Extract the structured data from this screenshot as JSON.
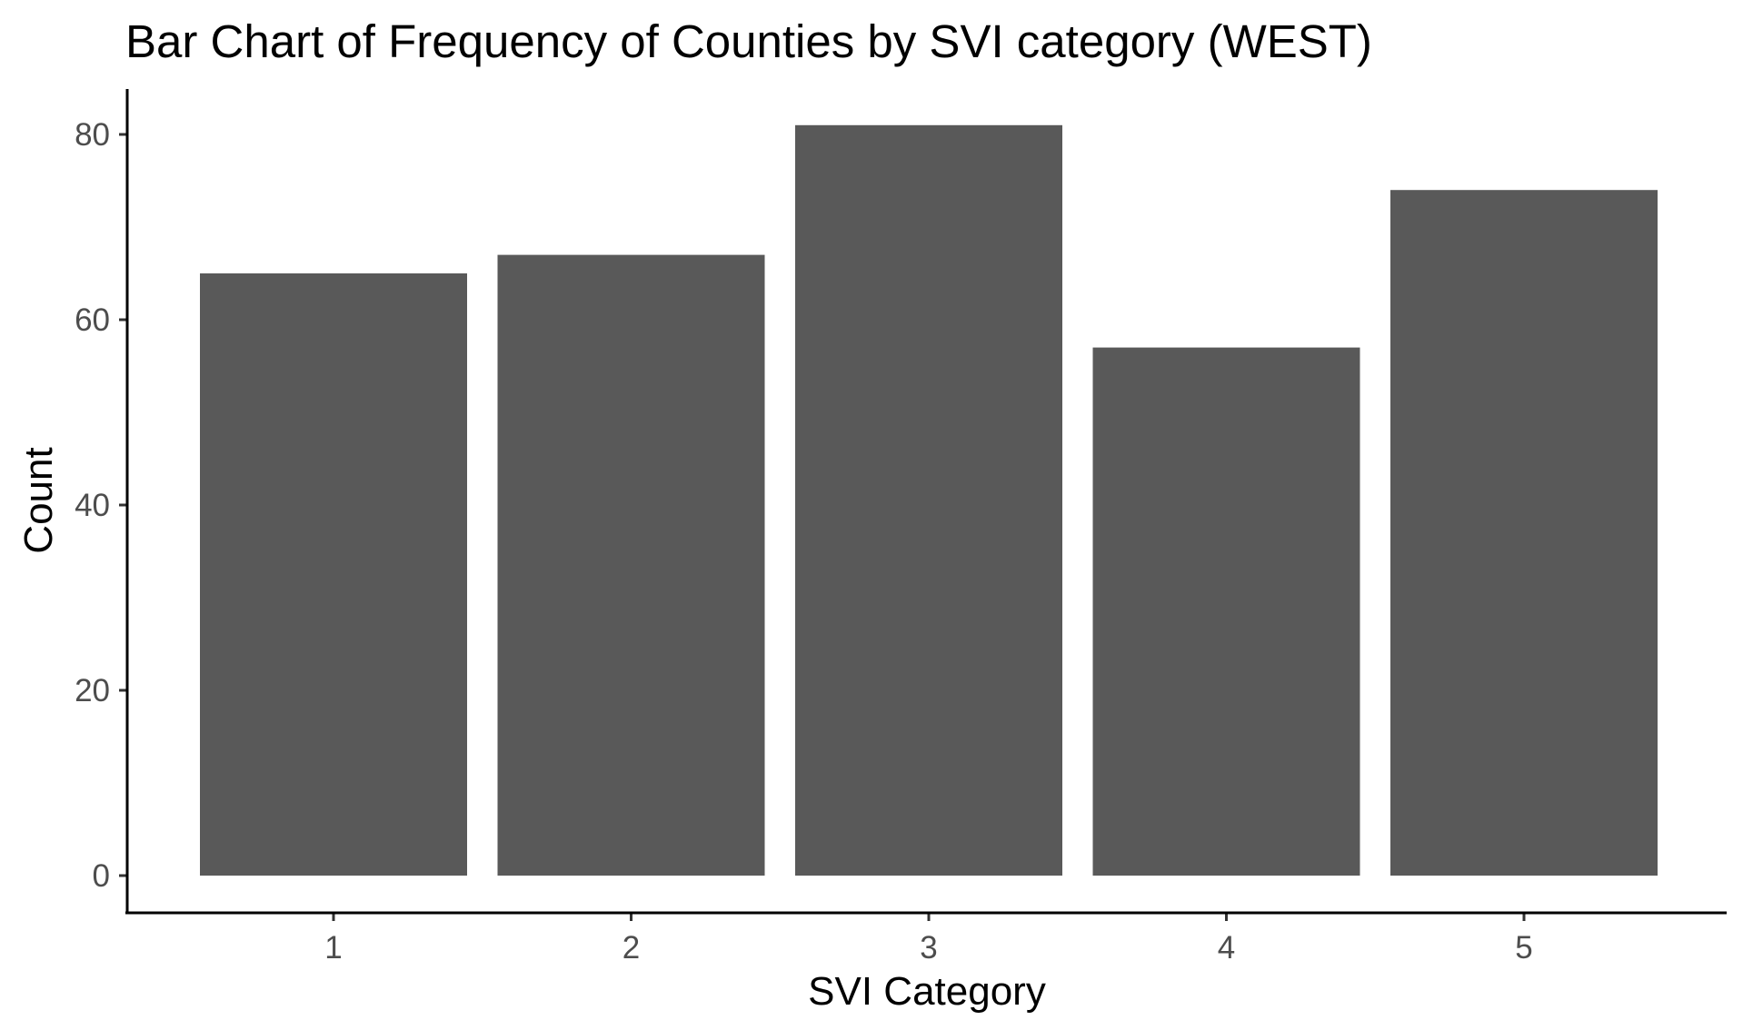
{
  "chart_data": {
    "type": "bar",
    "title": "Bar Chart of Frequency of Counties by SVI category (WEST)",
    "xlabel": "SVI Category",
    "ylabel": "Count",
    "categories": [
      "1",
      "2",
      "3",
      "4",
      "5"
    ],
    "values": [
      65,
      67,
      81,
      57,
      74
    ],
    "ylim": [
      0,
      85
    ],
    "yticks": [
      0,
      20,
      40,
      60,
      80
    ],
    "ytick_labels": [
      "0",
      "20",
      "40",
      "60",
      "80"
    ],
    "grid": false,
    "legend": "none",
    "bar_color": "#595959"
  }
}
